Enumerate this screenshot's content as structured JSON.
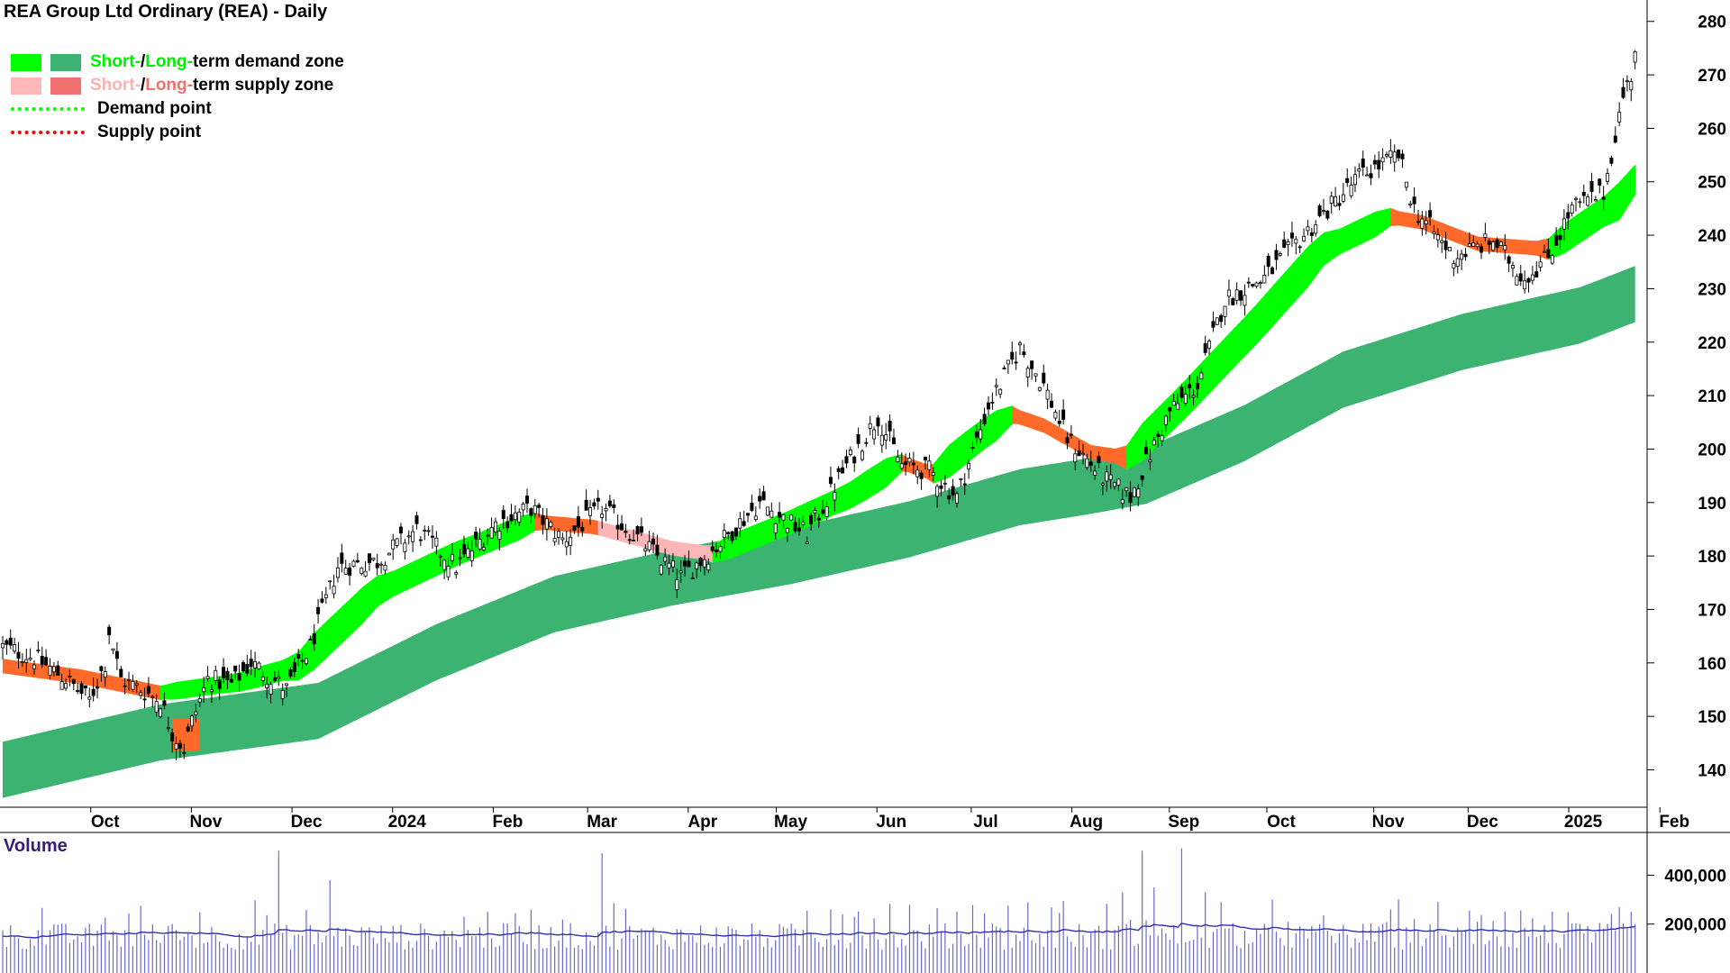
{
  "chart_data": {
    "type": "candlestick",
    "title": "REA Group Ltd Ordinary (REA) - Daily",
    "ylim": [
      133,
      284
    ],
    "y_ticks": [
      140,
      150,
      160,
      170,
      180,
      190,
      200,
      210,
      220,
      230,
      240,
      250,
      260,
      270,
      280
    ],
    "x_tick_labels": [
      "Oct",
      "Nov",
      "Dec",
      "2024",
      "Feb",
      "Mar",
      "Apr",
      "May",
      "Jun",
      "Jul",
      "Aug",
      "Sep",
      "Oct",
      "Nov",
      "Dec",
      "2025",
      "Feb"
    ],
    "legend": [
      {
        "short": "Short-",
        "sep": " / ",
        "long": "Long-",
        "rest": "term demand zone",
        "short_color": "#00ff00",
        "long_color": "#3cb371"
      },
      {
        "short": "Short-",
        "sep": " / ",
        "long": "Long-",
        "rest": "term supply zone",
        "short_color": "#ffb6b6",
        "long_color": "#f07070"
      },
      {
        "label": "Demand point",
        "color": "#00ff00"
      },
      {
        "label": "Supply point",
        "color": "#ff0000"
      }
    ],
    "price_anchors": [
      [
        0,
        163
      ],
      [
        8,
        161
      ],
      [
        16,
        157
      ],
      [
        22,
        153
      ],
      [
        26,
        160
      ],
      [
        27,
        166
      ],
      [
        30,
        157
      ],
      [
        40,
        153
      ],
      [
        43,
        147
      ],
      [
        46,
        144
      ],
      [
        48,
        149
      ],
      [
        52,
        157
      ],
      [
        58,
        156
      ],
      [
        63,
        160
      ],
      [
        72,
        155
      ],
      [
        78,
        163
      ],
      [
        85,
        178
      ],
      [
        95,
        179
      ],
      [
        105,
        185
      ],
      [
        115,
        178
      ],
      [
        125,
        186
      ],
      [
        134,
        189
      ],
      [
        142,
        183
      ],
      [
        152,
        189
      ],
      [
        160,
        184
      ],
      [
        172,
        176
      ],
      [
        180,
        181
      ],
      [
        192,
        190
      ],
      [
        204,
        184
      ],
      [
        214,
        197
      ],
      [
        222,
        206
      ],
      [
        228,
        197
      ],
      [
        235,
        196
      ],
      [
        242,
        191
      ],
      [
        250,
        208
      ],
      [
        258,
        219
      ],
      [
        264,
        212
      ],
      [
        270,
        202
      ],
      [
        280,
        194
      ],
      [
        286,
        191
      ],
      [
        296,
        207
      ],
      [
        303,
        212
      ],
      [
        310,
        228
      ],
      [
        320,
        232
      ],
      [
        330,
        240
      ],
      [
        344,
        251
      ],
      [
        354,
        255
      ],
      [
        358,
        245
      ],
      [
        368,
        236
      ],
      [
        378,
        239
      ],
      [
        386,
        232
      ],
      [
        392,
        236
      ],
      [
        398,
        245
      ],
      [
        406,
        248
      ],
      [
        411,
        266
      ],
      [
        413,
        270
      ],
      [
        414,
        275
      ]
    ],
    "ema_short_anchors": [
      [
        0,
        160
      ],
      [
        20,
        158
      ],
      [
        40,
        155
      ],
      [
        60,
        157
      ],
      [
        75,
        160
      ],
      [
        95,
        174
      ],
      [
        115,
        181
      ],
      [
        135,
        187
      ],
      [
        150,
        186
      ],
      [
        170,
        182
      ],
      [
        180,
        181
      ],
      [
        200,
        187
      ],
      [
        215,
        192
      ],
      [
        228,
        198
      ],
      [
        236,
        196
      ],
      [
        248,
        203
      ],
      [
        256,
        207
      ],
      [
        264,
        205
      ],
      [
        276,
        200
      ],
      [
        285,
        199
      ],
      [
        300,
        210
      ],
      [
        318,
        224
      ],
      [
        335,
        238
      ],
      [
        352,
        244
      ],
      [
        360,
        243
      ],
      [
        374,
        239
      ],
      [
        392,
        238
      ],
      [
        404,
        244
      ],
      [
        410,
        247
      ],
      [
        414,
        251
      ]
    ],
    "ema_long_anchors": [
      [
        0,
        140
      ],
      [
        40,
        147
      ],
      [
        80,
        151
      ],
      [
        110,
        162
      ],
      [
        140,
        171
      ],
      [
        170,
        176
      ],
      [
        200,
        180
      ],
      [
        230,
        185
      ],
      [
        258,
        191
      ],
      [
        275,
        193
      ],
      [
        290,
        195
      ],
      [
        315,
        203
      ],
      [
        340,
        213
      ],
      [
        370,
        220
      ],
      [
        400,
        225
      ],
      [
        414,
        229
      ]
    ],
    "volume_ylim": [
      0,
      560000
    ],
    "volume_ticks": [
      200000,
      400000
    ],
    "volume_title": "Volume",
    "volume_spikes": [
      [
        70,
        500000
      ],
      [
        83,
        380000
      ],
      [
        117,
        230000
      ],
      [
        123,
        250000
      ],
      [
        152,
        490000
      ],
      [
        210,
        260000
      ],
      [
        213,
        240000
      ],
      [
        216,
        230000
      ],
      [
        284,
        330000
      ],
      [
        289,
        500000
      ],
      [
        292,
        350000
      ],
      [
        299,
        510000
      ],
      [
        305,
        330000
      ],
      [
        309,
        290000
      ],
      [
        352,
        260000
      ],
      [
        374,
        210000
      ],
      [
        408,
        240000
      ],
      [
        410,
        270000
      ],
      [
        414,
        200000
      ]
    ],
    "volume_base": 95000
  }
}
